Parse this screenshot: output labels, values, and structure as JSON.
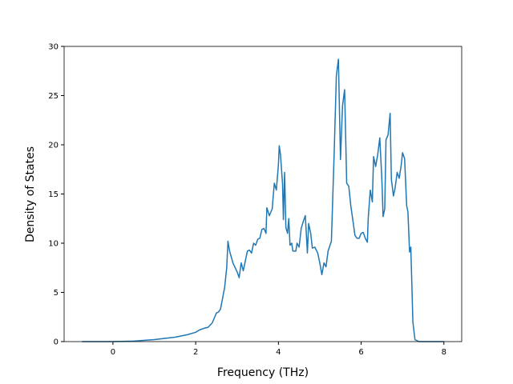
{
  "chart_data": {
    "type": "line",
    "x_label": "Frequency (THz)",
    "y_label": "Density of States",
    "x": [
      -0.75,
      -0.5,
      0,
      0.5,
      1.0,
      1.5,
      1.8,
      2.0,
      2.1,
      2.2,
      2.3,
      2.4,
      2.45,
      2.5,
      2.55,
      2.6,
      2.65,
      2.7,
      2.75,
      2.78,
      2.82,
      2.9,
      3.0,
      3.05,
      3.1,
      3.15,
      3.25,
      3.3,
      3.35,
      3.4,
      3.45,
      3.5,
      3.55,
      3.6,
      3.65,
      3.7,
      3.72,
      3.78,
      3.85,
      3.9,
      3.95,
      4.0,
      4.02,
      4.05,
      4.1,
      4.12,
      4.15,
      4.18,
      4.22,
      4.25,
      4.28,
      4.32,
      4.35,
      4.42,
      4.45,
      4.5,
      4.55,
      4.6,
      4.65,
      4.7,
      4.73,
      4.78,
      4.82,
      4.88,
      4.95,
      5.0,
      5.05,
      5.1,
      5.15,
      5.2,
      5.28,
      5.35,
      5.4,
      5.45,
      5.5,
      5.55,
      5.6,
      5.65,
      5.7,
      5.75,
      5.8,
      5.85,
      5.9,
      5.95,
      6.0,
      6.05,
      6.1,
      6.15,
      6.17,
      6.22,
      6.27,
      6.3,
      6.35,
      6.4,
      6.45,
      6.5,
      6.53,
      6.57,
      6.6,
      6.65,
      6.7,
      6.73,
      6.78,
      6.82,
      6.87,
      6.92,
      6.97,
      7.0,
      7.05,
      7.1,
      7.13,
      7.17,
      7.2,
      7.25,
      7.3,
      7.4,
      8.0
    ],
    "series": [
      {
        "name": "DOS",
        "color": "#1f77b4",
        "values": [
          0,
          0,
          0,
          0.05,
          0.2,
          0.45,
          0.7,
          0.95,
          1.2,
          1.35,
          1.45,
          1.9,
          2.4,
          2.9,
          3.0,
          3.3,
          4.4,
          5.5,
          7.5,
          10.2,
          9.2,
          8.0,
          7.1,
          6.5,
          8.0,
          7.2,
          9.2,
          9.3,
          9.0,
          10.0,
          9.8,
          10.4,
          10.5,
          11.4,
          11.5,
          11.0,
          13.6,
          12.8,
          13.5,
          16.1,
          15.4,
          18.0,
          19.9,
          19.0,
          16.0,
          12.4,
          17.2,
          11.6,
          11.0,
          12.5,
          9.8,
          10.0,
          9.2,
          9.2,
          10.0,
          9.6,
          11.5,
          12.2,
          12.8,
          9.0,
          12.0,
          11.0,
          9.5,
          9.6,
          9.0,
          8.0,
          6.8,
          8.0,
          7.6,
          9.2,
          10.2,
          19.5,
          27.0,
          28.7,
          18.5,
          24.0,
          25.6,
          16.1,
          15.8,
          13.8,
          12.3,
          10.8,
          10.5,
          10.5,
          11.0,
          11.1,
          10.5,
          10.1,
          12.5,
          15.4,
          14.2,
          18.8,
          17.8,
          19.0,
          20.7,
          16.5,
          12.7,
          13.5,
          20.5,
          21.0,
          23.2,
          16.5,
          14.8,
          15.6,
          17.2,
          16.6,
          18.0,
          19.2,
          18.6,
          13.8,
          13.2,
          9.1,
          9.6,
          2.0,
          0.2,
          0,
          0
        ]
      }
    ],
    "xlim": [
      -1.18,
      8.43
    ],
    "xticks": [
      0,
      2,
      4,
      6,
      8
    ],
    "ylim": [
      0,
      30
    ],
    "yticks": [
      0,
      5,
      10,
      15,
      20,
      25,
      30
    ]
  }
}
